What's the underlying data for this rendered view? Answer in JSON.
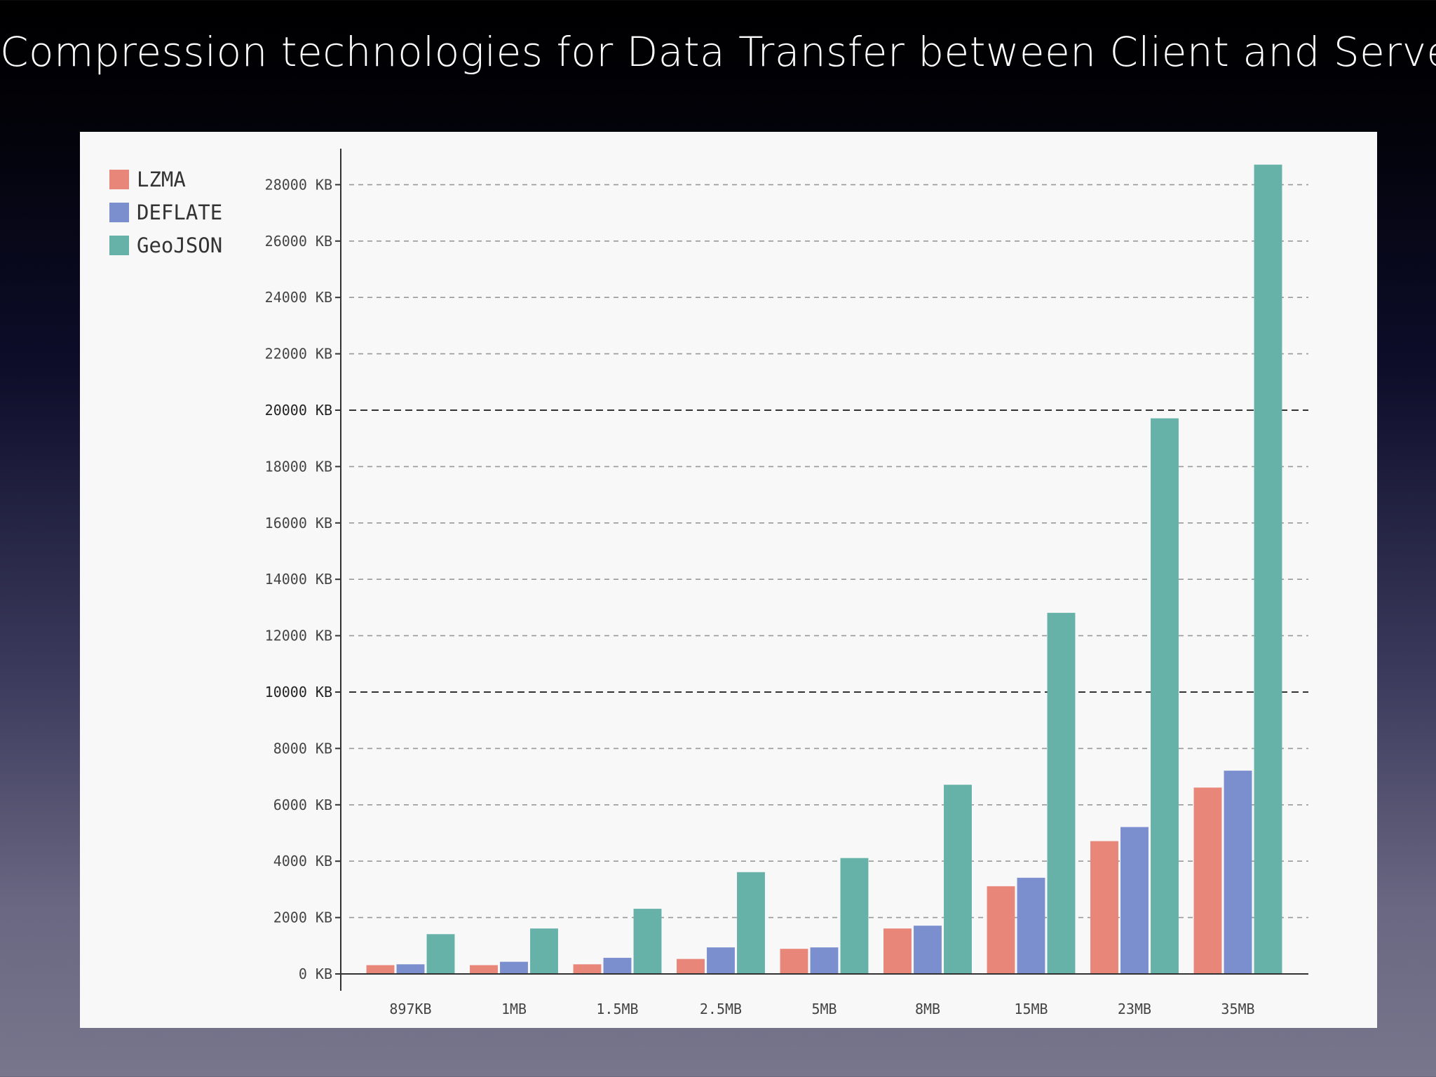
{
  "slide": {
    "title": "Compression technologies for Data Transfer between Client and Server"
  },
  "colors": {
    "panel_background": "#f8f8f8",
    "grid_minor": "#999999",
    "grid_major": "#333333",
    "axis": "#333333"
  },
  "chart_data": {
    "type": "bar",
    "title": "",
    "xlabel": "",
    "ylabel": "",
    "ylim": [
      0,
      29000
    ],
    "y_ticks": [
      0,
      2000,
      4000,
      6000,
      8000,
      10000,
      12000,
      14000,
      16000,
      18000,
      20000,
      22000,
      24000,
      26000,
      28000
    ],
    "y_tick_suffix": " KB",
    "y_major_ticks": [
      10000,
      20000
    ],
    "grid": true,
    "legend_position": "top-left",
    "categories": [
      "897KB",
      "1MB",
      "1.5MB",
      "2.5MB",
      "5MB",
      "8MB",
      "15MB",
      "23MB",
      "35MB"
    ],
    "series": [
      {
        "name": "LZMA",
        "color": "#e8867a",
        "values": [
          300,
          300,
          330,
          520,
          880,
          1600,
          3100,
          4700,
          6600
        ]
      },
      {
        "name": "DEFLATE",
        "color": "#7b8fcf",
        "values": [
          330,
          420,
          560,
          930,
          930,
          1700,
          3400,
          5200,
          7200
        ]
      },
      {
        "name": "GeoJSON",
        "color": "#66b2a8",
        "values": [
          1400,
          1600,
          2300,
          3600,
          4100,
          6700,
          12800,
          19700,
          28700
        ]
      }
    ]
  }
}
